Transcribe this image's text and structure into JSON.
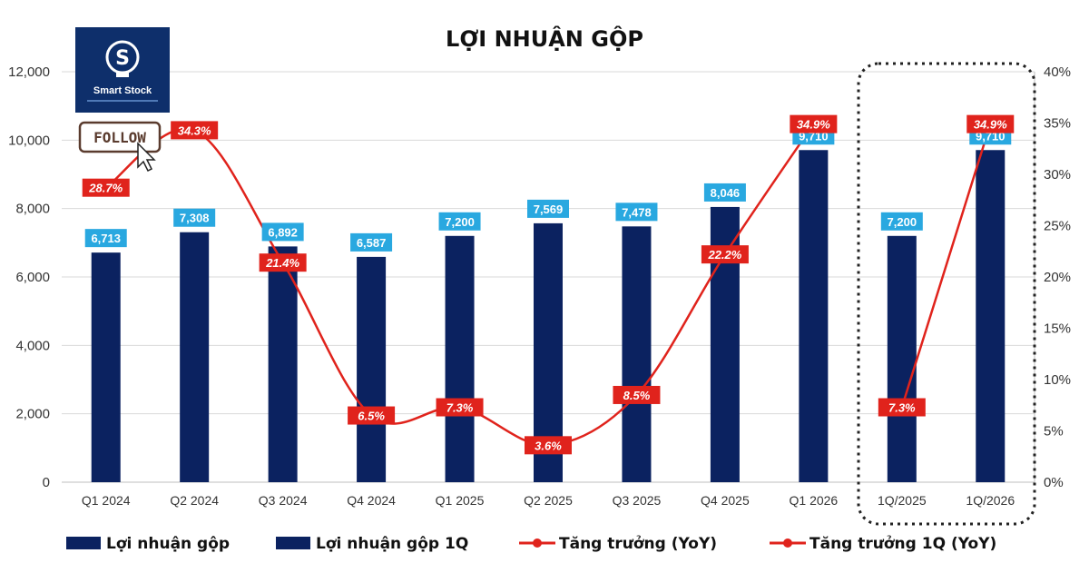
{
  "logo": {
    "name": "Smart Stock"
  },
  "follow_badge": {
    "label": "FOLLOW"
  },
  "chart_data": {
    "type": "bar",
    "title": "LỢI NHUẬN GỘP",
    "categories": [
      "Q1 2024",
      "Q2 2024",
      "Q3 2024",
      "Q4 2024",
      "Q1 2025",
      "Q2 2025",
      "Q3 2025",
      "Q4 2025",
      "Q1 2026",
      "1Q/2025",
      "1Q/2026"
    ],
    "series": [
      {
        "name": "Lợi nhuận gộp",
        "type": "bar",
        "axis": "left",
        "color": "#0b2260",
        "values": [
          6713,
          7308,
          6892,
          6587,
          7200,
          7569,
          7478,
          8046,
          9710,
          null,
          null
        ],
        "labels": [
          "6,713",
          "7,308",
          "6,892",
          "6,587",
          "7,200",
          "7,569",
          "7,478",
          "8,046",
          "9,710",
          null,
          null
        ]
      },
      {
        "name": "Lợi nhuận gộp 1Q",
        "type": "bar",
        "axis": "left",
        "color": "#0b2260",
        "values": [
          null,
          null,
          null,
          null,
          null,
          null,
          null,
          null,
          null,
          7200,
          9710
        ],
        "labels": [
          null,
          null,
          null,
          null,
          null,
          null,
          null,
          null,
          null,
          "7,200",
          "9,710"
        ]
      },
      {
        "name": "Tăng trưởng (YoY)",
        "type": "line",
        "axis": "right",
        "color": "#e0231c",
        "values": [
          28.7,
          34.3,
          21.4,
          6.5,
          7.3,
          3.6,
          8.5,
          22.2,
          34.9,
          null,
          null
        ],
        "labels": [
          "28.7%",
          "34.3%",
          "21.4%",
          "6.5%",
          "7.3%",
          "3.6%",
          "8.5%",
          "22.2%",
          "34.9%",
          null,
          null
        ]
      },
      {
        "name": "Tăng trưởng 1Q (YoY)",
        "type": "line",
        "axis": "right",
        "color": "#e0231c",
        "values": [
          null,
          null,
          null,
          null,
          null,
          null,
          null,
          null,
          null,
          7.3,
          34.9
        ],
        "labels": [
          null,
          null,
          null,
          null,
          null,
          null,
          null,
          null,
          null,
          "7.3%",
          "34.9%"
        ]
      }
    ],
    "y_left": {
      "min": 0,
      "max": 12000,
      "ticks": [
        "0",
        "2,000",
        "4,000",
        "6,000",
        "8,000",
        "10,000",
        "12,000"
      ]
    },
    "y_right": {
      "min": 0,
      "max": 40,
      "ticks": [
        "0%",
        "5%",
        "10%",
        "15%",
        "20%",
        "25%",
        "30%",
        "35%",
        "40%"
      ]
    },
    "grid": true,
    "legend_position": "bottom",
    "value_label_color": "#29a8e0",
    "pct_label_color": "#e0231c",
    "highlight_group": [
      "1Q/2025",
      "1Q/2026"
    ]
  }
}
